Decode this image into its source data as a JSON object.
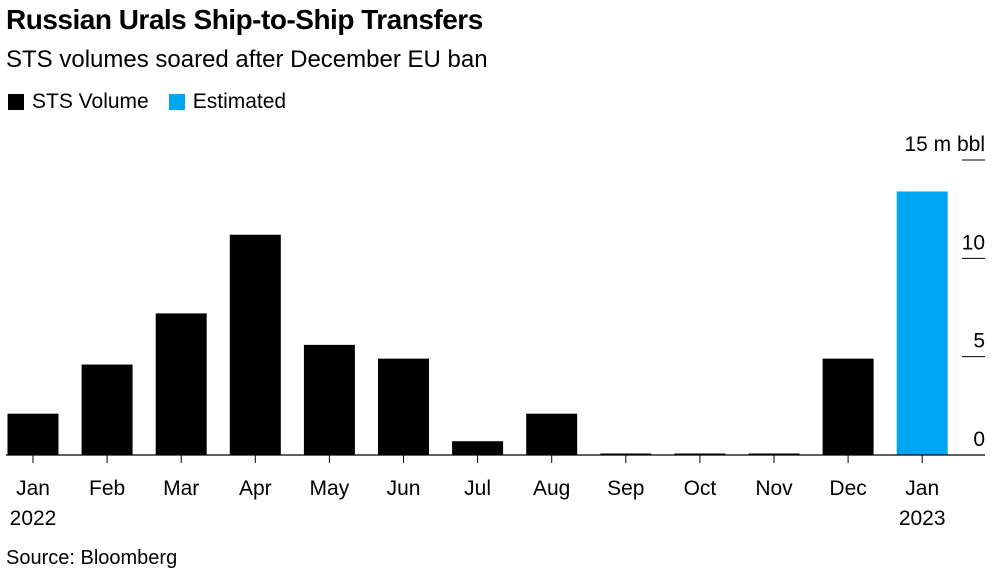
{
  "chart_data": {
    "type": "bar",
    "title": "Russian Urals Ship-to-Ship Transfers",
    "subtitle": "STS volumes soared after December EU ban",
    "categories": [
      "Jan",
      "Feb",
      "Mar",
      "Apr",
      "May",
      "Jun",
      "Jul",
      "Aug",
      "Sep",
      "Oct",
      "Nov",
      "Dec",
      "Jan"
    ],
    "year_labels": [
      "2022",
      "",
      "",
      "",
      "",
      "",
      "",
      "",
      "",
      "",
      "",
      "",
      "2023"
    ],
    "series": [
      {
        "name": "STS Volume",
        "color": "#000000",
        "values": [
          2.1,
          4.6,
          7.2,
          11.2,
          5.6,
          4.9,
          0.7,
          2.1,
          0.05,
          0.05,
          0.05,
          4.9,
          null
        ]
      },
      {
        "name": "Estimated",
        "color": "#00a5f2",
        "values": [
          null,
          null,
          null,
          null,
          null,
          null,
          null,
          null,
          null,
          null,
          null,
          null,
          13.4
        ]
      }
    ],
    "yticks": [
      0,
      5,
      10,
      15
    ],
    "ytick_labels": [
      "0",
      "5",
      "10",
      "15 m bbl"
    ],
    "ylim": [
      0,
      15
    ],
    "xlabel": "",
    "ylabel": "",
    "legend_position": "top-left",
    "source": "Source: Bloomberg"
  }
}
